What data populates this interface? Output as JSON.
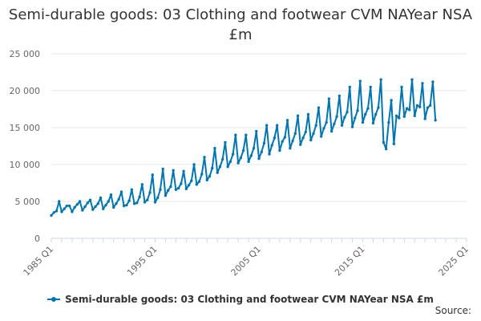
{
  "chart_data": {
    "type": "line",
    "title": "Semi-durable goods: 03 Clothing and footwear CVM NAYear NSA £m",
    "xlabel": "",
    "ylabel": "",
    "ylim": [
      0,
      25000
    ],
    "y_ticks": [
      "0",
      "5 000",
      "10 000",
      "15 000",
      "20 000",
      "25 000"
    ],
    "x_ticks": [
      "1985 Q1",
      "1995 Q1",
      "2005 Q1",
      "2015 Q1",
      "2025 Q1"
    ],
    "x_start": "1985 Q1",
    "x_end": "2025 Q1",
    "grid": "horizontal",
    "legend_position": "bottom",
    "series": [
      {
        "name": "Semi-durable goods: 03 Clothing and footwear CVM NAYear NSA £m",
        "color": "#0075b0",
        "values": [
          3100,
          3500,
          3700,
          5000,
          3600,
          4000,
          4400,
          4400,
          3600,
          4200,
          4600,
          5000,
          3800,
          4300,
          4800,
          5200,
          3900,
          4300,
          4700,
          5500,
          4000,
          4500,
          5000,
          5900,
          4200,
          4700,
          5300,
          6300,
          4400,
          4500,
          5100,
          6600,
          4700,
          4800,
          5600,
          7300,
          4900,
          5200,
          6200,
          8600,
          4900,
          5500,
          6600,
          9400,
          5800,
          6500,
          7000,
          9200,
          6600,
          6800,
          7400,
          9100,
          6700,
          7200,
          7800,
          10000,
          7300,
          7700,
          8700,
          11000,
          7900,
          8400,
          9500,
          12200,
          8900,
          9700,
          10700,
          13000,
          9700,
          10400,
          11400,
          14000,
          10200,
          10900,
          11900,
          14000,
          10400,
          11200,
          12200,
          14500,
          10800,
          11700,
          12900,
          15300,
          11400,
          12600,
          13600,
          15300,
          11900,
          13100,
          13700,
          16000,
          12200,
          13200,
          14200,
          16600,
          12700,
          13600,
          14400,
          16800,
          13300,
          14200,
          15300,
          17700,
          13800,
          14900,
          15700,
          18900,
          14500,
          15500,
          16500,
          19300,
          15300,
          16400,
          17100,
          20500,
          15100,
          16300,
          17300,
          21300,
          15700,
          16800,
          17600,
          20500,
          15600,
          16800,
          17700,
          21500,
          13000,
          12100,
          15700,
          18700,
          12800,
          16600,
          16300,
          20500,
          16500,
          17600,
          17400,
          21500,
          16600,
          18000,
          17800,
          21000,
          16200,
          17700,
          18000,
          21200,
          16000
        ]
      }
    ]
  },
  "source_label": "Source:"
}
